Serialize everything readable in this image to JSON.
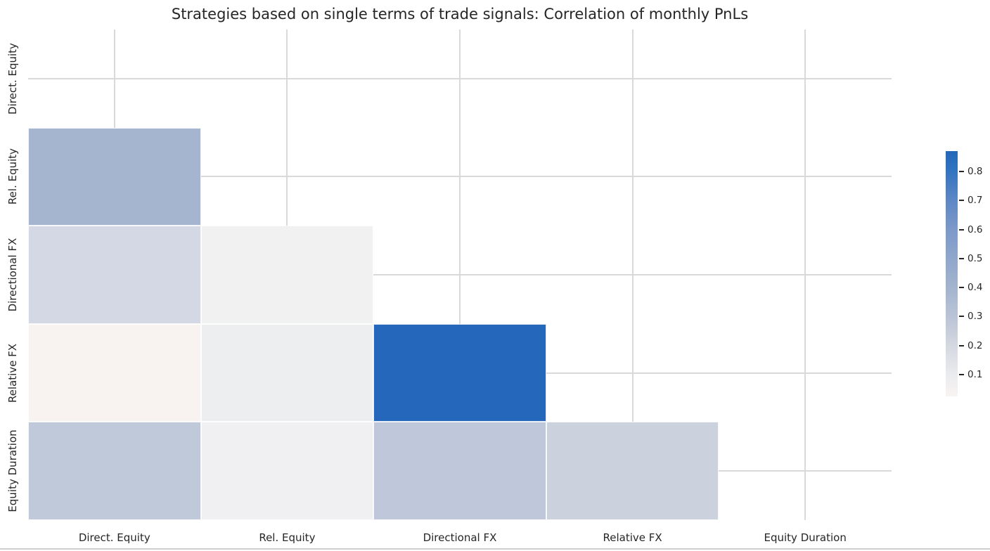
{
  "chart": {
    "title": "Strategies based on single terms of trade signals: Correlation of monthly PnLs"
  },
  "chart_data": {
    "type": "heatmap",
    "title": "Strategies based on single terms of trade signals: Correlation of monthly PnLs",
    "categories": [
      "Direct. Equity",
      "Rel. Equity",
      "Directional FX",
      "Relative FX",
      "Equity Duration"
    ],
    "rows": [
      "Direct. Equity",
      "Rel. Equity",
      "Directional FX",
      "Relative FX",
      "Equity Duration"
    ],
    "mask": "upper triangle and diagonal hidden",
    "grid": true,
    "legend_position": "right-colorbar",
    "matrix": [
      [
        null,
        null,
        null,
        null,
        null
      ],
      [
        0.41,
        null,
        null,
        null,
        null
      ],
      [
        0.21,
        0.07,
        null,
        null,
        null
      ],
      [
        0.03,
        0.1,
        0.87,
        null,
        null
      ],
      [
        0.29,
        0.07,
        0.29,
        0.22,
        null
      ]
    ],
    "cells": [
      {
        "row": 1,
        "col": 0,
        "row_label": "Rel. Equity",
        "col_label": "Direct. Equity",
        "value": 0.41,
        "color": "#a5b5cf"
      },
      {
        "row": 2,
        "col": 0,
        "row_label": "Directional FX",
        "col_label": "Direct. Equity",
        "value": 0.21,
        "color": "#d4d8e5"
      },
      {
        "row": 2,
        "col": 1,
        "row_label": "Directional FX",
        "col_label": "Rel. Equity",
        "value": 0.07,
        "color": "#f2f1f2"
      },
      {
        "row": 3,
        "col": 0,
        "row_label": "Relative FX",
        "col_label": "Direct. Equity",
        "value": 0.03,
        "color": "#f8f3f1"
      },
      {
        "row": 3,
        "col": 1,
        "row_label": "Relative FX",
        "col_label": "Rel. Equity",
        "value": 0.1,
        "color": "#eceef0"
      },
      {
        "row": 3,
        "col": 2,
        "row_label": "Relative FX",
        "col_label": "Directional FX",
        "value": 0.87,
        "color": "#2568bb"
      },
      {
        "row": 4,
        "col": 0,
        "row_label": "Equity Duration",
        "col_label": "Direct. Equity",
        "value": 0.29,
        "color": "#c0c9da"
      },
      {
        "row": 4,
        "col": 1,
        "row_label": "Equity Duration",
        "col_label": "Rel. Equity",
        "value": 0.07,
        "color": "#f0eff2"
      },
      {
        "row": 4,
        "col": 2,
        "row_label": "Equity Duration",
        "col_label": "Directional FX",
        "value": 0.29,
        "color": "#bfc8da"
      },
      {
        "row": 4,
        "col": 3,
        "row_label": "Equity Duration",
        "col_label": "Relative FX",
        "value": 0.22,
        "color": "#ccd2dd"
      }
    ],
    "colorbar": {
      "vmin": 0.025,
      "vmax": 0.87,
      "ticks": [
        "0.8",
        "0.7",
        "0.6",
        "0.5",
        "0.4",
        "0.3",
        "0.2",
        "0.1"
      ],
      "tick_values": [
        0.8,
        0.7,
        0.6,
        0.5,
        0.4,
        0.3,
        0.2,
        0.1
      ],
      "max_color": "#2467ba",
      "min_color": "#f8f4f1",
      "gradient_stops": [
        {
          "pos": 0,
          "color": "#2467ba"
        },
        {
          "pos": 8,
          "color": "#3273c0"
        },
        {
          "pos": 20,
          "color": "#5d87c5"
        },
        {
          "pos": 32,
          "color": "#7c99c9"
        },
        {
          "pos": 44,
          "color": "#8fa7cb"
        },
        {
          "pos": 56,
          "color": "#a3b4cf"
        },
        {
          "pos": 67,
          "color": "#b9c3d6"
        },
        {
          "pos": 79,
          "color": "#d3d7e0"
        },
        {
          "pos": 91,
          "color": "#eaebef"
        },
        {
          "pos": 100,
          "color": "#f8f4f1"
        }
      ]
    },
    "grid_color": "#d9d9d9"
  }
}
